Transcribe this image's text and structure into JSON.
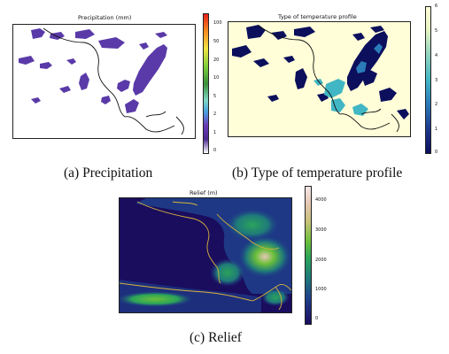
{
  "figure": {
    "panels": [
      {
        "id": "a",
        "plot_title": "Precipitation (mm)",
        "caption": "(a) Precipitation",
        "colorbar_ticks": [
          "0",
          "1",
          "2",
          "5",
          "10",
          "20",
          "50",
          "100"
        ],
        "colorbar_colors": [
          "#ffffff",
          "#4b2a8f",
          "#6a3db8",
          "#4aa3df",
          "#7fd7c4",
          "#3a8f3a",
          "#7ccd3a",
          "#f0e442",
          "#f58a1f",
          "#e4211c"
        ]
      },
      {
        "id": "b",
        "plot_title": "Type of temperature profile",
        "caption": "(b) Type of temperature profile",
        "colorbar_ticks": [
          "0",
          "1",
          "2",
          "3",
          "4",
          "5",
          "6"
        ],
        "colorbar_colors": [
          "#0b0f5c",
          "#1f3a8f",
          "#2b7bb9",
          "#41b6c4",
          "#8fd3bf",
          "#e9f5c4",
          "#fffed8"
        ]
      },
      {
        "id": "c",
        "plot_title": "Relief (m)",
        "caption": "(c) Relief",
        "colorbar_ticks": [
          "0",
          "1000",
          "2000",
          "3000",
          "4000"
        ],
        "colorbar_colors": [
          "#1a0d5e",
          "#1f3d8a",
          "#1f7a7a",
          "#2aa35a",
          "#6bbf3a",
          "#c9c27a",
          "#e6c7b5",
          "#f5e8e8"
        ]
      }
    ]
  }
}
